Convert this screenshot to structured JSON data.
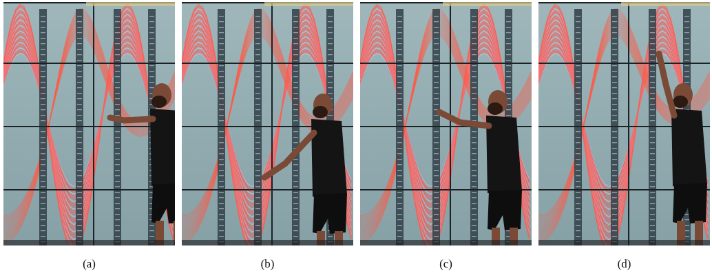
{
  "figure": {
    "panels": [
      {
        "id": "a",
        "caption": "(a)",
        "people": [
          {
            "x": 210,
            "y": 115,
            "scale": 1.0,
            "arm": "forward"
          }
        ],
        "belt_offset": 0
      },
      {
        "id": "b",
        "caption": "(b)",
        "people": [
          {
            "x": 185,
            "y": 130,
            "scale": 1.0,
            "arm": "down-left"
          }
        ],
        "belt_offset": 10
      },
      {
        "id": "c",
        "caption": "(c)",
        "people": [
          {
            "x": 180,
            "y": 125,
            "scale": 1.0,
            "arm": "forward-left"
          }
        ],
        "belt_offset": 25
      },
      {
        "id": "d",
        "caption": "(d)",
        "people": [
          {
            "x": 190,
            "y": 115,
            "scale": 1.0,
            "arm": "up"
          }
        ],
        "belt_offset": 40
      }
    ]
  },
  "colors": {
    "wall": "#8fa9ad",
    "bezel": "#1b2226",
    "curve_red": "#ff5a48",
    "curve_blue": "#b7c8ff",
    "axis": "#304048",
    "person": "#141414",
    "skin": "#7a4a36"
  }
}
